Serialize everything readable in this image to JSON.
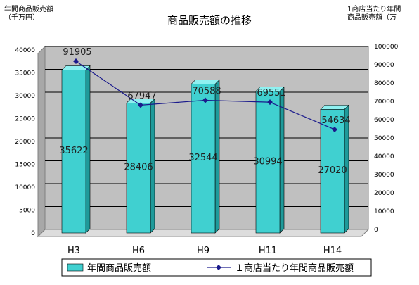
{
  "chart_data": {
    "type": "bar",
    "title": "商品販売額の推移",
    "ylabel_left": [
      "年間商品販売額",
      "（千万円）"
    ],
    "ylabel_right": [
      "1商店当たり年間",
      "商品販売額（万"
    ],
    "categories": [
      "H3",
      "H6",
      "H9",
      "H11",
      "H14"
    ],
    "ylim_left": [
      0,
      40000
    ],
    "ylim_right": [
      0,
      100000
    ],
    "yticks_left": [
      "40000",
      "35000",
      "30000",
      "25000",
      "20000",
      "15000",
      "10000",
      "5000",
      "0"
    ],
    "yticks_right": [
      "100000",
      "90000",
      "80000",
      "70000",
      "60000",
      "50000",
      "40000",
      "30000",
      "20000",
      "10000",
      "0"
    ],
    "series": [
      {
        "name": "年間商品販売額",
        "kind": "bar",
        "axis": "left",
        "values": [
          35622,
          28406,
          32544,
          30994,
          27020
        ],
        "color": "#40d0d0"
      },
      {
        "name": "１商店当たり年間商品販売額",
        "kind": "line",
        "axis": "right",
        "values": [
          91905,
          67947,
          70588,
          69551,
          54634
        ],
        "color": "#1a1a8c"
      }
    ],
    "grid": true,
    "legend": "bottom",
    "plot_background": "#c0c0c0"
  }
}
